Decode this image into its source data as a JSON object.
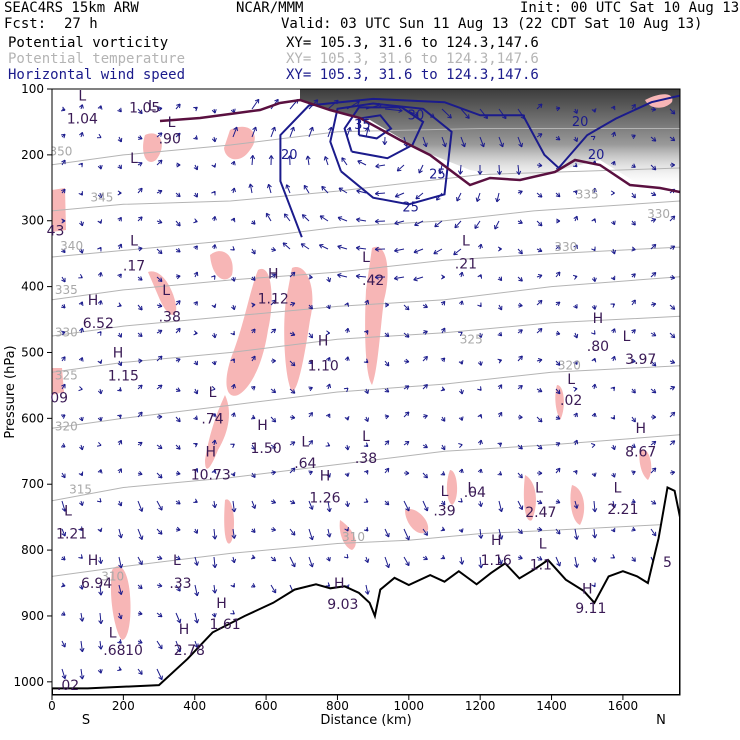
{
  "header": {
    "model": "SEAC4RS 15km ARW",
    "center": "NCAR/MMM",
    "init": "Init: 00 UTC Sat 10 Aug 13",
    "fcst_label": "Fcst:",
    "fcst_value": "27 h",
    "valid": "Valid: 03 UTC Sun 11 Aug 13 (22 CDT Sat 10 Aug 13)"
  },
  "legend": [
    {
      "name": "Potential vorticity",
      "xy": "XY= 105.3, 31.6 to 124.3,147.6",
      "color": "#000000"
    },
    {
      "name": "Potential temperature",
      "xy": "XY= 105.3, 31.6 to 124.3,147.6",
      "color": "#b4b4b4"
    },
    {
      "name": "Horizontal wind speed",
      "xy": "XY= 105.3, 31.6 to 124.3,147.6",
      "color": "#1b1b8c"
    }
  ],
  "colors": {
    "pv_fill": "#f7b6b6",
    "theta": "#b4b4b4",
    "wind": "#1b1b8c",
    "pv_contour": "#5a1040",
    "terrain": "#000000",
    "label": "#3a1a55"
  },
  "chart_data": {
    "type": "cross-section",
    "xlabel": "Distance (km)",
    "ylabel": "Pressure (hPa)",
    "xlim": [
      0,
      1760
    ],
    "ylim": [
      1020,
      100
    ],
    "xticks": [
      "0",
      "200",
      "400",
      "600",
      "800",
      "1000",
      "1200",
      "1400",
      "1600"
    ],
    "yticks": [
      "100",
      "200",
      "300",
      "400",
      "500",
      "600",
      "700",
      "800",
      "900",
      "1000"
    ],
    "left_end_label": "S",
    "right_end_label": "N",
    "terrain": [
      [
        0,
        1010
      ],
      [
        100,
        1010
      ],
      [
        300,
        1005
      ],
      [
        380,
        965
      ],
      [
        450,
        925
      ],
      [
        540,
        900
      ],
      [
        620,
        880
      ],
      [
        680,
        860
      ],
      [
        740,
        852
      ],
      [
        780,
        858
      ],
      [
        820,
        855
      ],
      [
        860,
        865
      ],
      [
        890,
        880
      ],
      [
        905,
        900
      ],
      [
        920,
        860
      ],
      [
        960,
        842
      ],
      [
        1000,
        853
      ],
      [
        1060,
        838
      ],
      [
        1100,
        848
      ],
      [
        1140,
        832
      ],
      [
        1190,
        852
      ],
      [
        1230,
        835
      ],
      [
        1270,
        820
      ],
      [
        1310,
        843
      ],
      [
        1350,
        830
      ],
      [
        1390,
        815
      ],
      [
        1440,
        845
      ],
      [
        1490,
        862
      ],
      [
        1520,
        880
      ],
      [
        1560,
        840
      ],
      [
        1600,
        832
      ],
      [
        1640,
        840
      ],
      [
        1670,
        850
      ],
      [
        1700,
        782
      ],
      [
        1725,
        705
      ],
      [
        1745,
        710
      ],
      [
        1760,
        750
      ]
    ],
    "theta_contours": [
      {
        "label": "350",
        "points": [
          [
            0,
            215
          ],
          [
            200,
            200
          ],
          [
            500,
            185
          ],
          [
            800,
            165
          ],
          [
            1200,
            160
          ],
          [
            1760,
            160
          ]
        ]
      },
      {
        "label": "345",
        "points": [
          [
            0,
            285
          ],
          [
            200,
            275
          ],
          [
            500,
            270
          ],
          [
            800,
            255
          ],
          [
            1200,
            230
          ],
          [
            1760,
            220
          ]
        ]
      },
      {
        "label": "340",
        "points": [
          [
            0,
            355
          ],
          [
            200,
            345
          ],
          [
            500,
            330
          ],
          [
            800,
            310
          ],
          [
            1100,
            300
          ],
          [
            1350,
            285
          ],
          [
            1760,
            270
          ]
        ]
      },
      {
        "label": "335",
        "points": [
          [
            0,
            420
          ],
          [
            200,
            405
          ],
          [
            500,
            390
          ],
          [
            800,
            378
          ],
          [
            1100,
            360
          ],
          [
            1400,
            350
          ],
          [
            1760,
            340
          ]
        ]
      },
      {
        "label": "330",
        "points": [
          [
            0,
            475
          ],
          [
            200,
            460
          ],
          [
            500,
            445
          ],
          [
            800,
            430
          ],
          [
            1100,
            420
          ],
          [
            1400,
            400
          ],
          [
            1760,
            385
          ]
        ]
      },
      {
        "label": "325",
        "points": [
          [
            0,
            530
          ],
          [
            200,
            515
          ],
          [
            500,
            500
          ],
          [
            800,
            480
          ],
          [
            1100,
            470
          ],
          [
            1400,
            455
          ],
          [
            1760,
            445
          ]
        ]
      },
      {
        "label": "320",
        "points": [
          [
            0,
            615
          ],
          [
            200,
            600
          ],
          [
            500,
            580
          ],
          [
            800,
            560
          ],
          [
            1100,
            548
          ],
          [
            1400,
            530
          ],
          [
            1760,
            520
          ]
        ]
      },
      {
        "label": "315",
        "points": [
          [
            0,
            725
          ],
          [
            200,
            705
          ],
          [
            500,
            690
          ],
          [
            800,
            670
          ],
          [
            1100,
            650
          ],
          [
            1400,
            640
          ],
          [
            1760,
            625
          ]
        ]
      },
      {
        "label": "310",
        "points": [
          [
            0,
            840
          ],
          [
            200,
            825
          ],
          [
            500,
            805
          ],
          [
            800,
            790
          ],
          [
            1000,
            785
          ],
          [
            1200,
            775
          ],
          [
            1400,
            770
          ],
          [
            1760,
            760
          ]
        ]
      }
    ],
    "theta_labels": [
      {
        "text": "350",
        "x": 25,
        "p": 195
      },
      {
        "text": "345",
        "x": 140,
        "p": 265
      },
      {
        "text": "340",
        "x": 55,
        "p": 338
      },
      {
        "text": "335",
        "x": 40,
        "p": 405
      },
      {
        "text": "330",
        "x": 40,
        "p": 470
      },
      {
        "text": "325",
        "x": 40,
        "p": 535
      },
      {
        "text": "320",
        "x": 40,
        "p": 612
      },
      {
        "text": "315",
        "x": 80,
        "p": 708
      },
      {
        "text": "310",
        "x": 170,
        "p": 840
      },
      {
        "text": "310",
        "x": 845,
        "p": 780
      },
      {
        "text": "325",
        "x": 1175,
        "p": 480
      },
      {
        "text": "320",
        "x": 1450,
        "p": 520
      },
      {
        "text": "330",
        "x": 1440,
        "p": 340
      },
      {
        "text": "330",
        "x": 1700,
        "p": 290
      },
      {
        "text": "335",
        "x": 1500,
        "p": 260
      }
    ],
    "wind_speed_contours": [
      {
        "label": "20",
        "points": [
          [
            700,
            325
          ],
          [
            640,
            240
          ],
          [
            640,
            170
          ],
          [
            720,
            125
          ],
          [
            900,
            115
          ],
          [
            1100,
            120
          ],
          [
            1200,
            140
          ],
          [
            1320,
            140
          ],
          [
            1380,
            200
          ],
          [
            1420,
            220
          ],
          [
            1500,
            170
          ],
          [
            1580,
            145
          ],
          [
            1680,
            120
          ],
          [
            1760,
            110
          ]
        ]
      },
      {
        "label": "25",
        "points": [
          [
            810,
            225
          ],
          [
            780,
            180
          ],
          [
            800,
            130
          ],
          [
            900,
            122
          ],
          [
            1040,
            130
          ],
          [
            1120,
            165
          ],
          [
            1100,
            260
          ],
          [
            1000,
            275
          ],
          [
            900,
            265
          ],
          [
            810,
            225
          ]
        ]
      },
      {
        "label": "30",
        "points": [
          [
            840,
            195
          ],
          [
            820,
            160
          ],
          [
            860,
            128
          ],
          [
            980,
            128
          ],
          [
            1040,
            150
          ],
          [
            1010,
            185
          ],
          [
            940,
            205
          ],
          [
            840,
            195
          ]
        ]
      },
      {
        "label": "35",
        "points": [
          [
            860,
            170
          ],
          [
            860,
            145
          ],
          [
            920,
            140
          ],
          [
            950,
            160
          ],
          [
            910,
            175
          ],
          [
            860,
            170
          ]
        ]
      }
    ],
    "wind_speed_labels": [
      {
        "text": "20",
        "x": 665,
        "p": 200
      },
      {
        "text": "25",
        "x": 1005,
        "p": 280
      },
      {
        "text": "30",
        "x": 1020,
        "p": 140
      },
      {
        "text": "35",
        "x": 870,
        "p": 155
      },
      {
        "text": "25",
        "x": 1080,
        "p": 230
      },
      {
        "text": "20",
        "x": 1525,
        "p": 200
      },
      {
        "text": "20",
        "x": 1480,
        "p": 150
      }
    ],
    "markers": [
      {
        "text": "L",
        "x": 85,
        "p": 110
      },
      {
        "text": "1.04",
        "x": 85,
        "p": 145
      },
      {
        "text": "L",
        "x": 280,
        "p": 125
      },
      {
        "text": "1.05",
        "x": 260,
        "p": 128
      },
      {
        "text": "L",
        "x": 335,
        "p": 150
      },
      {
        "text": ".90",
        "x": 330,
        "p": 175
      },
      {
        "text": "L",
        "x": 230,
        "p": 205
      },
      {
        "text": "43",
        "x": 10,
        "p": 315
      },
      {
        "text": "L",
        "x": 230,
        "p": 330
      },
      {
        "text": ".17",
        "x": 230,
        "p": 368
      },
      {
        "text": "H",
        "x": 115,
        "p": 420
      },
      {
        "text": "6.52",
        "x": 130,
        "p": 455
      },
      {
        "text": "L",
        "x": 320,
        "p": 405
      },
      {
        "text": ".38",
        "x": 330,
        "p": 445
      },
      {
        "text": "H",
        "x": 185,
        "p": 500
      },
      {
        "text": "1.15",
        "x": 200,
        "p": 535
      },
      {
        "text": "09",
        "x": 20,
        "p": 568
      },
      {
        "text": "H",
        "x": 620,
        "p": 380
      },
      {
        "text": "1.12",
        "x": 620,
        "p": 418
      },
      {
        "text": "H",
        "x": 760,
        "p": 482
      },
      {
        "text": "1.10",
        "x": 760,
        "p": 520
      },
      {
        "text": "L",
        "x": 880,
        "p": 355
      },
      {
        "text": ".42",
        "x": 900,
        "p": 390
      },
      {
        "text": "L",
        "x": 1160,
        "p": 330
      },
      {
        "text": ".21",
        "x": 1160,
        "p": 365
      },
      {
        "text": "H",
        "x": 1530,
        "p": 448
      },
      {
        "text": ".80",
        "x": 1530,
        "p": 490
      },
      {
        "text": "L",
        "x": 1610,
        "p": 475
      },
      {
        "text": "3.97",
        "x": 1650,
        "p": 510
      },
      {
        "text": "L",
        "x": 1455,
        "p": 540
      },
      {
        "text": ".02",
        "x": 1455,
        "p": 572
      },
      {
        "text": "L",
        "x": 450,
        "p": 560
      },
      {
        "text": ".74",
        "x": 450,
        "p": 600
      },
      {
        "text": "H",
        "x": 590,
        "p": 610
      },
      {
        "text": "1.50",
        "x": 600,
        "p": 645
      },
      {
        "text": "H",
        "x": 445,
        "p": 650
      },
      {
        "text": "10.73",
        "x": 445,
        "p": 685
      },
      {
        "text": "L",
        "x": 710,
        "p": 635
      },
      {
        "text": ".64",
        "x": 710,
        "p": 668
      },
      {
        "text": "L",
        "x": 880,
        "p": 627
      },
      {
        "text": ".38",
        "x": 880,
        "p": 660
      },
      {
        "text": "H",
        "x": 765,
        "p": 687
      },
      {
        "text": "1.26",
        "x": 765,
        "p": 720
      },
      {
        "text": "H",
        "x": 1650,
        "p": 615
      },
      {
        "text": "8.67",
        "x": 1650,
        "p": 650
      },
      {
        "text": "L",
        "x": 1100,
        "p": 710
      },
      {
        "text": ".39",
        "x": 1100,
        "p": 740
      },
      {
        "text": "L",
        "x": 1175,
        "p": 705
      },
      {
        "text": ".04",
        "x": 1185,
        "p": 712
      },
      {
        "text": "L",
        "x": 1365,
        "p": 705
      },
      {
        "text": "2.47",
        "x": 1370,
        "p": 742
      },
      {
        "text": "L",
        "x": 1585,
        "p": 705
      },
      {
        "text": "2.21",
        "x": 1600,
        "p": 738
      },
      {
        "text": "L",
        "x": 45,
        "p": 740
      },
      {
        "text": "1.21",
        "x": 55,
        "p": 775
      },
      {
        "text": "H",
        "x": 115,
        "p": 815
      },
      {
        "text": "6.94",
        "x": 125,
        "p": 850
      },
      {
        "text": "L",
        "x": 350,
        "p": 815
      },
      {
        "text": ".33",
        "x": 360,
        "p": 850
      },
      {
        "text": "H",
        "x": 1245,
        "p": 785
      },
      {
        "text": "1.16",
        "x": 1245,
        "p": 815
      },
      {
        "text": "L",
        "x": 1375,
        "p": 790
      },
      {
        "text": "1.1",
        "x": 1370,
        "p": 822
      },
      {
        "text": "H",
        "x": 1500,
        "p": 858
      },
      {
        "text": "9.11",
        "x": 1510,
        "p": 888
      },
      {
        "text": "H",
        "x": 805,
        "p": 850
      },
      {
        "text": "9.03",
        "x": 815,
        "p": 882
      },
      {
        "text": "H",
        "x": 475,
        "p": 880
      },
      {
        "text": "1.61",
        "x": 485,
        "p": 912
      },
      {
        "text": "H",
        "x": 370,
        "p": 920
      },
      {
        "text": "2.78",
        "x": 385,
        "p": 952
      },
      {
        "text": "L",
        "x": 170,
        "p": 925
      },
      {
        "text": ".68",
        "x": 175,
        "p": 952
      },
      {
        "text": "10",
        "x": 230,
        "p": 952
      },
      {
        "text": ".02",
        "x": 45,
        "p": 1005
      },
      {
        "text": "5",
        "x": 1725,
        "p": 818
      }
    ]
  }
}
